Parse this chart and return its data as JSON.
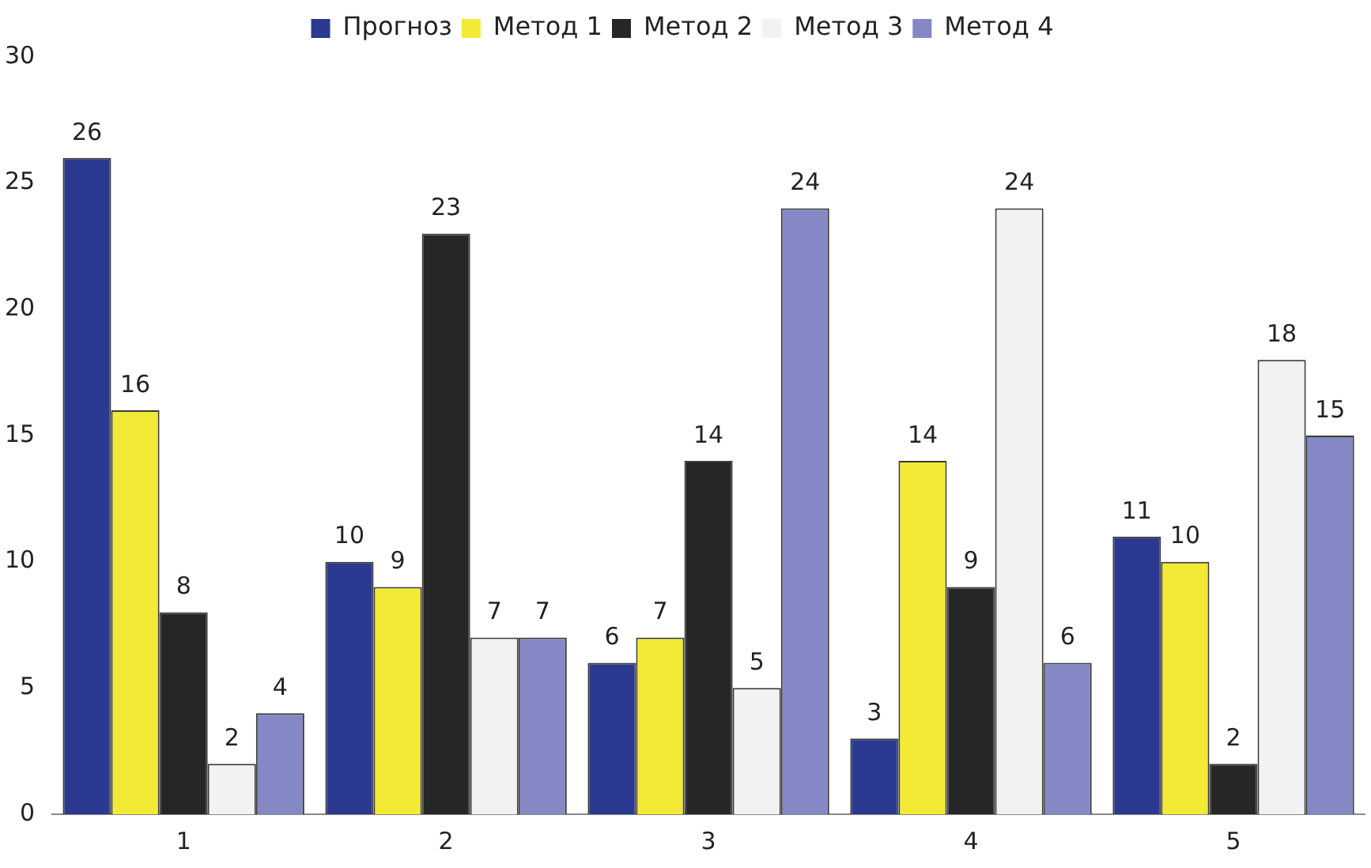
{
  "chart_data": {
    "type": "bar",
    "categories": [
      "1",
      "2",
      "3",
      "4",
      "5"
    ],
    "series": [
      {
        "name": "Прогноз",
        "color": "#2b3990",
        "values": [
          26,
          10,
          6,
          3,
          11
        ]
      },
      {
        "name": "Метод 1",
        "color": "#f2ea35",
        "values": [
          16,
          9,
          7,
          14,
          10
        ]
      },
      {
        "name": "Метод 2",
        "color": "#262626",
        "values": [
          8,
          23,
          14,
          9,
          2
        ]
      },
      {
        "name": "Метод 3",
        "color": "#f2f2f2",
        "values": [
          2,
          7,
          5,
          24,
          18
        ]
      },
      {
        "name": "Метод 4",
        "color": "#8488c4",
        "values": [
          4,
          7,
          24,
          6,
          15
        ]
      }
    ],
    "ylim": [
      0,
      30
    ],
    "yticks": [
      0,
      5,
      10,
      15,
      20,
      25,
      30
    ],
    "grid": false,
    "legend": "top",
    "data_labels": true
  }
}
